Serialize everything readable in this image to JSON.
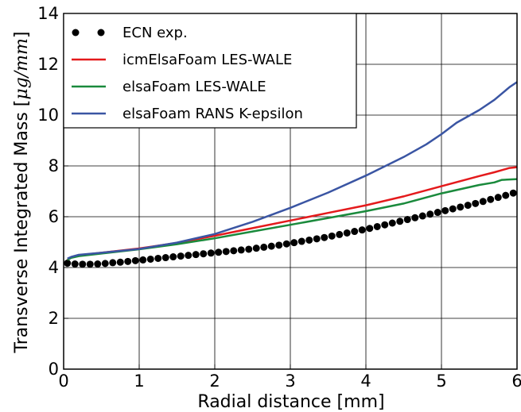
{
  "chart_data": {
    "type": "line",
    "title": "",
    "xlabel": "Radial distance [mm]",
    "ylabel": "Transverse Integrated Mass",
    "ylabel_unit": "μg/mm",
    "xlim": [
      0,
      6
    ],
    "ylim": [
      0,
      14
    ],
    "xticks": [
      "0",
      "1",
      "2",
      "3",
      "4",
      "5",
      "6"
    ],
    "yticks": [
      "0",
      "2",
      "4",
      "6",
      "8",
      "10",
      "12",
      "14"
    ],
    "grid": true,
    "legend_position": "top-left",
    "series": [
      {
        "name": "ECN exp.",
        "kind": "scatter",
        "color": "#000000",
        "x": [
          0.05,
          0.15,
          0.25,
          0.35,
          0.45,
          0.55,
          0.65,
          0.75,
          0.85,
          0.95,
          1.05,
          1.15,
          1.25,
          1.35,
          1.45,
          1.55,
          1.65,
          1.75,
          1.85,
          1.95,
          2.05,
          2.15,
          2.25,
          2.35,
          2.45,
          2.55,
          2.65,
          2.75,
          2.85,
          2.95,
          3.05,
          3.15,
          3.25,
          3.35,
          3.45,
          3.55,
          3.65,
          3.75,
          3.85,
          3.95,
          4.05,
          4.15,
          4.25,
          4.35,
          4.45,
          4.55,
          4.65,
          4.75,
          4.85,
          4.95,
          5.05,
          5.15,
          5.25,
          5.35,
          5.45,
          5.55,
          5.65,
          5.75,
          5.85,
          5.95
        ],
        "y": [
          4.17,
          4.14,
          4.13,
          4.13,
          4.14,
          4.16,
          4.19,
          4.21,
          4.24,
          4.27,
          4.3,
          4.33,
          4.36,
          4.39,
          4.42,
          4.45,
          4.48,
          4.51,
          4.54,
          4.57,
          4.6,
          4.63,
          4.66,
          4.69,
          4.72,
          4.76,
          4.8,
          4.84,
          4.88,
          4.93,
          4.98,
          5.03,
          5.08,
          5.13,
          5.18,
          5.24,
          5.3,
          5.36,
          5.42,
          5.48,
          5.54,
          5.61,
          5.68,
          5.75,
          5.82,
          5.89,
          5.96,
          6.03,
          6.1,
          6.17,
          6.24,
          6.31,
          6.38,
          6.45,
          6.52,
          6.6,
          6.68,
          6.76,
          6.84,
          6.93
        ]
      },
      {
        "name": "icmElsaFoam LES-WALE",
        "kind": "line",
        "color": "#e41a1c",
        "x": [
          0.05,
          0.1,
          0.2,
          0.5,
          1.0,
          1.5,
          2.0,
          2.5,
          3.0,
          3.5,
          4.0,
          4.5,
          5.0,
          5.5,
          5.7,
          5.9,
          6.0
        ],
        "y": [
          4.3,
          4.4,
          4.48,
          4.58,
          4.75,
          4.97,
          5.25,
          5.55,
          5.85,
          6.15,
          6.45,
          6.8,
          7.2,
          7.6,
          7.75,
          7.92,
          7.95
        ]
      },
      {
        "name": "elsaFoam LES-WALE",
        "kind": "line",
        "color": "#1a8a3c",
        "x": [
          0.05,
          0.1,
          0.2,
          0.5,
          1.0,
          1.5,
          2.0,
          2.5,
          3.0,
          3.5,
          4.0,
          4.5,
          5.0,
          5.5,
          5.7,
          5.8,
          6.0
        ],
        "y": [
          4.3,
          4.38,
          4.45,
          4.55,
          4.72,
          4.92,
          5.15,
          5.42,
          5.68,
          5.95,
          6.22,
          6.52,
          6.92,
          7.25,
          7.35,
          7.45,
          7.48
        ]
      },
      {
        "name": "elsaFoam RANS K-epsilon",
        "kind": "line",
        "color": "#3a55a3",
        "x": [
          0.05,
          0.1,
          0.2,
          0.5,
          1.0,
          1.5,
          2.0,
          2.5,
          3.0,
          3.5,
          4.0,
          4.5,
          4.8,
          5.0,
          5.2,
          5.5,
          5.7,
          5.9,
          6.0
        ],
        "y": [
          4.35,
          4.42,
          4.5,
          4.58,
          4.73,
          4.98,
          5.32,
          5.8,
          6.35,
          6.95,
          7.62,
          8.35,
          8.85,
          9.25,
          9.7,
          10.2,
          10.6,
          11.1,
          11.3
        ]
      }
    ]
  }
}
